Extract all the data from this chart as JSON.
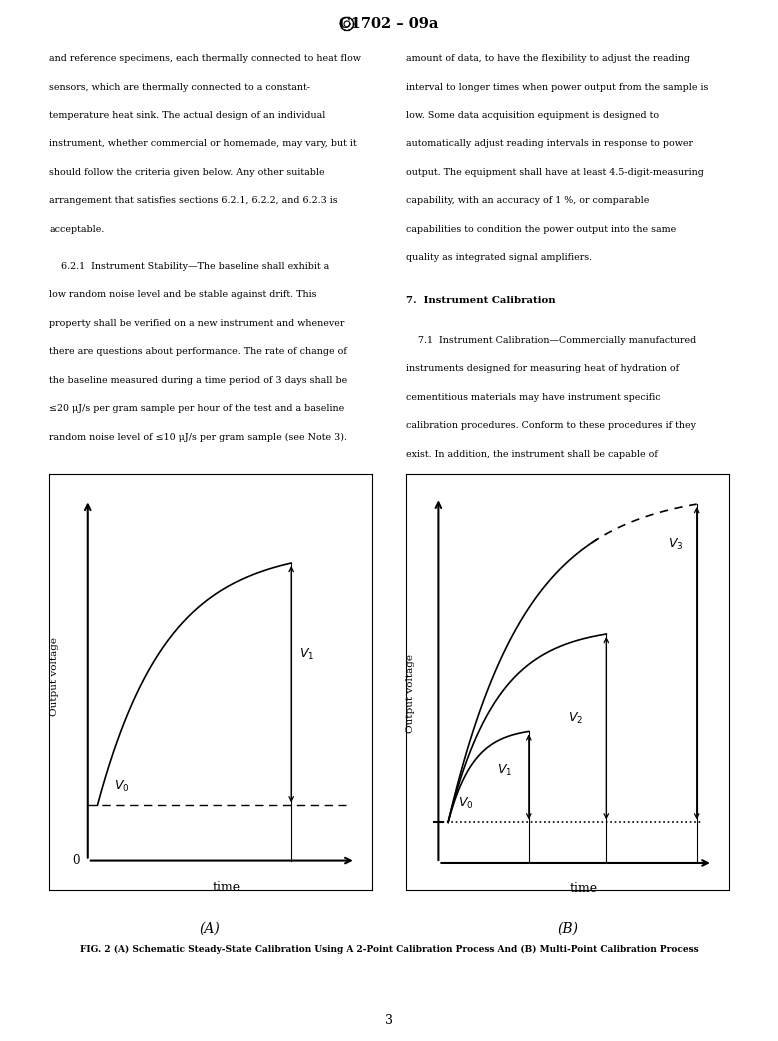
{
  "page_width": 7.78,
  "page_height": 10.41,
  "bg_color": "#ffffff",
  "text_color": "#000000",
  "red_color": "#cc0000",
  "header_text": "C1702 – 09a",
  "page_number": "3",
  "fig_caption": "FIG. 2 (A) Schematic Steady-State Calibration Using A 2-Point Calibration Process And (B) Multi-Point Calibration Process",
  "label_A": "(A)",
  "label_B": "(B)"
}
